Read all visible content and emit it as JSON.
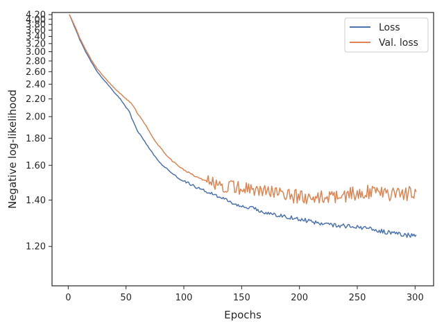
{
  "chart_data": {
    "type": "line",
    "xlabel": "Epochs",
    "ylabel": "Negative log-likelihood",
    "xlim": [
      -14,
      316
    ],
    "ylim": [
      1.07,
      4.3
    ],
    "y_scale": "reciprocal",
    "grid": false,
    "legend": "top-right",
    "x_ticks": [
      0,
      50,
      100,
      150,
      200,
      250,
      300
    ],
    "x_tick_labels": [
      "0",
      "50",
      "100",
      "150",
      "200",
      "250",
      "300"
    ],
    "y_ticks": [
      1.2,
      1.4,
      1.6,
      1.8,
      2.0,
      2.2,
      2.4,
      2.6,
      2.8,
      3.0,
      3.2,
      3.4,
      3.6,
      3.8,
      4.0,
      4.2
    ],
    "y_tick_labels": [
      "1.20",
      "1.40",
      "1.60",
      "1.80",
      "2.00",
      "2.20",
      "2.40",
      "2.60",
      "2.80",
      "3.00",
      "3.20",
      "3.40",
      "3.60",
      "3.80",
      "4.00",
      "4.20"
    ],
    "series": [
      {
        "name": "Loss",
        "color": "#4c72b0",
        "points": [
          [
            1,
            4.2
          ],
          [
            5,
            3.75
          ],
          [
            10,
            3.3
          ],
          [
            15,
            3.0
          ],
          [
            20,
            2.78
          ],
          [
            25,
            2.6
          ],
          [
            30,
            2.48
          ],
          [
            35,
            2.38
          ],
          [
            40,
            2.28
          ],
          [
            45,
            2.2
          ],
          [
            50,
            2.1
          ],
          [
            53,
            2.05
          ],
          [
            55,
            1.98
          ],
          [
            60,
            1.86
          ],
          [
            65,
            1.79
          ],
          [
            70,
            1.72
          ],
          [
            75,
            1.66
          ],
          [
            80,
            1.61
          ],
          [
            85,
            1.58
          ],
          [
            90,
            1.55
          ],
          [
            95,
            1.52
          ],
          [
            100,
            1.5
          ],
          [
            110,
            1.47
          ],
          [
            120,
            1.44
          ],
          [
            130,
            1.42
          ],
          [
            140,
            1.39
          ],
          [
            150,
            1.37
          ],
          [
            160,
            1.36
          ],
          [
            170,
            1.34
          ],
          [
            180,
            1.33
          ],
          [
            190,
            1.32
          ],
          [
            200,
            1.31
          ],
          [
            220,
            1.29
          ],
          [
            240,
            1.28
          ],
          [
            260,
            1.27
          ],
          [
            280,
            1.25
          ],
          [
            300,
            1.24
          ],
          [
            301,
            1.24
          ]
        ]
      },
      {
        "name": "Val. loss",
        "color": "#dd8452",
        "points": [
          [
            1,
            4.2
          ],
          [
            5,
            3.8
          ],
          [
            10,
            3.35
          ],
          [
            15,
            3.05
          ],
          [
            20,
            2.82
          ],
          [
            25,
            2.65
          ],
          [
            30,
            2.53
          ],
          [
            35,
            2.43
          ],
          [
            40,
            2.34
          ],
          [
            45,
            2.27
          ],
          [
            50,
            2.2
          ],
          [
            55,
            2.14
          ],
          [
            58,
            2.08
          ],
          [
            60,
            2.03
          ],
          [
            65,
            1.95
          ],
          [
            70,
            1.86
          ],
          [
            75,
            1.78
          ],
          [
            80,
            1.72
          ],
          [
            85,
            1.67
          ],
          [
            90,
            1.63
          ],
          [
            95,
            1.6
          ],
          [
            100,
            1.57
          ],
          [
            110,
            1.53
          ],
          [
            120,
            1.5
          ],
          [
            130,
            1.48
          ],
          [
            140,
            1.47
          ],
          [
            150,
            1.46
          ],
          [
            160,
            1.45
          ],
          [
            170,
            1.44
          ],
          [
            180,
            1.43
          ],
          [
            190,
            1.42
          ],
          [
            200,
            1.42
          ],
          [
            220,
            1.42
          ],
          [
            240,
            1.43
          ],
          [
            260,
            1.44
          ],
          [
            280,
            1.43
          ],
          [
            300,
            1.44
          ],
          [
            301,
            1.44
          ]
        ]
      }
    ]
  }
}
